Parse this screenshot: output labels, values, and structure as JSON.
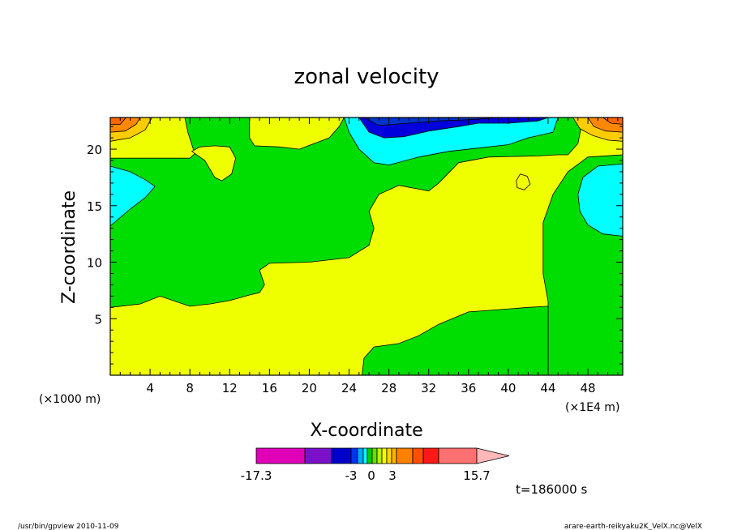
{
  "chart_data": {
    "type": "heatmap",
    "title": "zonal velocity",
    "xlabel": "X-coordinate",
    "ylabel": "Z-coordinate",
    "x_unit_left": "(×1000 m)",
    "x_unit_right": "(×1E4 m)",
    "xlim": [
      0,
      51.5
    ],
    "ylim": [
      0,
      22.8
    ],
    "x_ticks": [
      4,
      8,
      12,
      16,
      20,
      24,
      28,
      32,
      36,
      40,
      44,
      48
    ],
    "y_ticks": [
      5,
      10,
      15,
      20
    ],
    "contour_regions": [
      {
        "level": "yellow",
        "color": "#f0ff00",
        "points": [
          [
            0,
            0
          ],
          [
            51.5,
            0
          ],
          [
            51.5,
            22.8
          ],
          [
            0,
            22.8
          ]
        ]
      },
      {
        "level": "green",
        "color": "#00dd00",
        "points": [
          [
            0,
            6
          ],
          [
            3,
            6.3
          ],
          [
            5,
            7
          ],
          [
            7,
            6.4
          ],
          [
            8,
            6.1
          ],
          [
            10,
            6.3
          ],
          [
            12,
            6.6
          ],
          [
            14,
            7.1
          ],
          [
            15,
            7.3
          ],
          [
            15.5,
            8
          ],
          [
            15,
            9.3
          ],
          [
            16,
            9.9
          ],
          [
            20,
            10
          ],
          [
            24,
            10.4
          ],
          [
            26,
            11.5
          ],
          [
            26.5,
            13
          ],
          [
            26,
            14.5
          ],
          [
            27,
            16
          ],
          [
            29,
            16.8
          ],
          [
            32,
            16.3
          ],
          [
            33,
            17
          ],
          [
            35,
            18.8
          ],
          [
            38,
            19.3
          ],
          [
            43,
            19.4
          ],
          [
            45,
            19.5
          ],
          [
            46,
            19.5
          ],
          [
            47,
            20.5
          ],
          [
            47.5,
            22.8
          ],
          [
            7.5,
            22.8
          ],
          [
            7.8,
            21.5
          ],
          [
            8.2,
            20.4
          ],
          [
            8.5,
            19.6
          ],
          [
            8,
            19.2
          ],
          [
            0,
            19.2
          ]
        ]
      },
      {
        "level": "green-right",
        "color": "#00dd00",
        "points": [
          [
            51.5,
            19.5
          ],
          [
            48,
            19.3
          ],
          [
            46,
            18
          ],
          [
            44.5,
            16
          ],
          [
            43.5,
            13.5
          ],
          [
            43.5,
            9
          ],
          [
            44,
            6.5
          ],
          [
            44,
            0
          ],
          [
            51.5,
            0
          ]
        ]
      },
      {
        "level": "green-bottom",
        "color": "#00dd00",
        "points": [
          [
            25.3,
            0
          ],
          [
            25.5,
            1.5
          ],
          [
            26.5,
            2.5
          ],
          [
            29,
            2.8
          ],
          [
            31,
            3.5
          ],
          [
            33,
            4.5
          ],
          [
            36,
            5.6
          ],
          [
            39,
            5.8
          ],
          [
            42,
            6
          ],
          [
            44,
            6.1
          ],
          [
            44,
            0
          ]
        ]
      },
      {
        "level": "yellow-patch-1",
        "color": "#f0ff00",
        "points": [
          [
            8.2,
            19.8
          ],
          [
            9.5,
            19
          ],
          [
            10.5,
            17.5
          ],
          [
            11.2,
            17.2
          ],
          [
            12.2,
            17.8
          ],
          [
            12.6,
            19.2
          ],
          [
            12,
            20.2
          ],
          [
            10.5,
            20.3
          ],
          [
            9,
            20.2
          ]
        ]
      },
      {
        "level": "yellow-patch-2",
        "color": "#f0ff00",
        "points": [
          [
            14,
            22.8
          ],
          [
            14,
            21
          ],
          [
            14.5,
            20.3
          ],
          [
            17,
            20.2
          ],
          [
            19,
            20
          ],
          [
            20.5,
            20.5
          ],
          [
            22,
            21
          ],
          [
            23,
            22
          ],
          [
            23.5,
            22.8
          ]
        ]
      },
      {
        "level": "yellow-dot",
        "color": "#f0ff00",
        "points": [
          [
            40.8,
            17.2
          ],
          [
            41.2,
            17.8
          ],
          [
            41.9,
            17.6
          ],
          [
            42.2,
            16.9
          ],
          [
            41.6,
            16.4
          ],
          [
            40.9,
            16.6
          ]
        ]
      },
      {
        "level": "cyan-top",
        "color": "#00ffff",
        "points": [
          [
            23.5,
            22.8
          ],
          [
            24,
            21.5
          ],
          [
            25,
            20
          ],
          [
            26.5,
            18.8
          ],
          [
            28,
            18.6
          ],
          [
            31,
            19.3
          ],
          [
            34,
            19.8
          ],
          [
            37,
            20.1
          ],
          [
            40,
            20.4
          ],
          [
            42,
            21
          ],
          [
            44.5,
            21.5
          ],
          [
            45,
            22.8
          ]
        ]
      },
      {
        "level": "blue-top",
        "color": "#0000dd",
        "points": [
          [
            25,
            22.8
          ],
          [
            26,
            21.5
          ],
          [
            27.5,
            21
          ],
          [
            29.5,
            21.1
          ],
          [
            32,
            21.6
          ],
          [
            35,
            22
          ],
          [
            37,
            22.3
          ],
          [
            40,
            22.3
          ],
          [
            43,
            22.5
          ],
          [
            44,
            22.8
          ]
        ]
      },
      {
        "level": "navy-top",
        "color": "#0033cc",
        "points": [
          [
            25.5,
            22.8
          ],
          [
            27,
            22.1
          ],
          [
            30,
            22.3
          ],
          [
            33,
            22.5
          ],
          [
            36,
            22.6
          ],
          [
            39,
            22.8
          ]
        ]
      },
      {
        "level": "cyan-left",
        "color": "#00ffff",
        "points": [
          [
            0,
            18.5
          ],
          [
            2,
            18
          ],
          [
            3.5,
            17.3
          ],
          [
            4.5,
            16.7
          ],
          [
            3.5,
            15.7
          ],
          [
            2,
            14.7
          ],
          [
            0,
            13.2
          ]
        ]
      },
      {
        "level": "cyan-right",
        "color": "#00ffff",
        "points": [
          [
            51.5,
            18.7
          ],
          [
            49,
            18.5
          ],
          [
            47.5,
            17.5
          ],
          [
            47,
            16
          ],
          [
            47.2,
            14.5
          ],
          [
            48,
            13.3
          ],
          [
            49.5,
            12.5
          ],
          [
            51.5,
            12.3
          ]
        ]
      },
      {
        "level": "orange-tl-outer",
        "color": "#ffcc00",
        "points": [
          [
            0,
            22.8
          ],
          [
            0,
            20.7
          ],
          [
            2,
            21
          ],
          [
            3.5,
            21.7
          ],
          [
            4.2,
            22.8
          ]
        ]
      },
      {
        "level": "orange-tl-mid",
        "color": "#ff8800",
        "points": [
          [
            0,
            22.8
          ],
          [
            0,
            21.5
          ],
          [
            1.5,
            21.6
          ],
          [
            2.6,
            22.2
          ],
          [
            3,
            22.8
          ]
        ]
      },
      {
        "level": "orange-tl-inner",
        "color": "#ff6600",
        "points": [
          [
            0,
            22.8
          ],
          [
            0,
            22.2
          ],
          [
            1,
            22.2
          ],
          [
            1.6,
            22.8
          ]
        ]
      },
      {
        "level": "orange-tr-outer",
        "color": "#ffcc00",
        "points": [
          [
            51.5,
            22.8
          ],
          [
            46.5,
            22.8
          ],
          [
            47.2,
            21.8
          ],
          [
            48.5,
            21.2
          ],
          [
            50,
            20.8
          ],
          [
            51.5,
            20.7
          ]
        ]
      },
      {
        "level": "orange-tr-mid",
        "color": "#ff8800",
        "points": [
          [
            51.5,
            22.8
          ],
          [
            48,
            22.8
          ],
          [
            48.6,
            22
          ],
          [
            49.8,
            21.6
          ],
          [
            51.5,
            21.5
          ]
        ]
      },
      {
        "level": "orange-tr-inner",
        "color": "#ff6600",
        "points": [
          [
            51.5,
            22.8
          ],
          [
            49.5,
            22.8
          ],
          [
            50.3,
            22.3
          ],
          [
            51.5,
            22.2
          ]
        ]
      }
    ],
    "colorbar": {
      "colors": [
        "#e000b8",
        "#7a10c8",
        "#0000cc",
        "#0033ee",
        "#00a8ff",
        "#00ffff",
        "#00cc00",
        "#66e000",
        "#b8f000",
        "#f0ff00",
        "#ffd800",
        "#ffb000",
        "#ff8000",
        "#ff5000",
        "#ff1818",
        "#ff7070"
      ],
      "extend_color": "#ffb8b8",
      "labels": [
        "-17.3",
        "-3",
        "0",
        "3",
        "15.7"
      ]
    },
    "time_label": "t=186000 s"
  },
  "footer": {
    "left": "/usr/bin/gpview  2010-11-09",
    "right": "arare-earth-reikyaku2K_VelX.nc@VelX"
  }
}
